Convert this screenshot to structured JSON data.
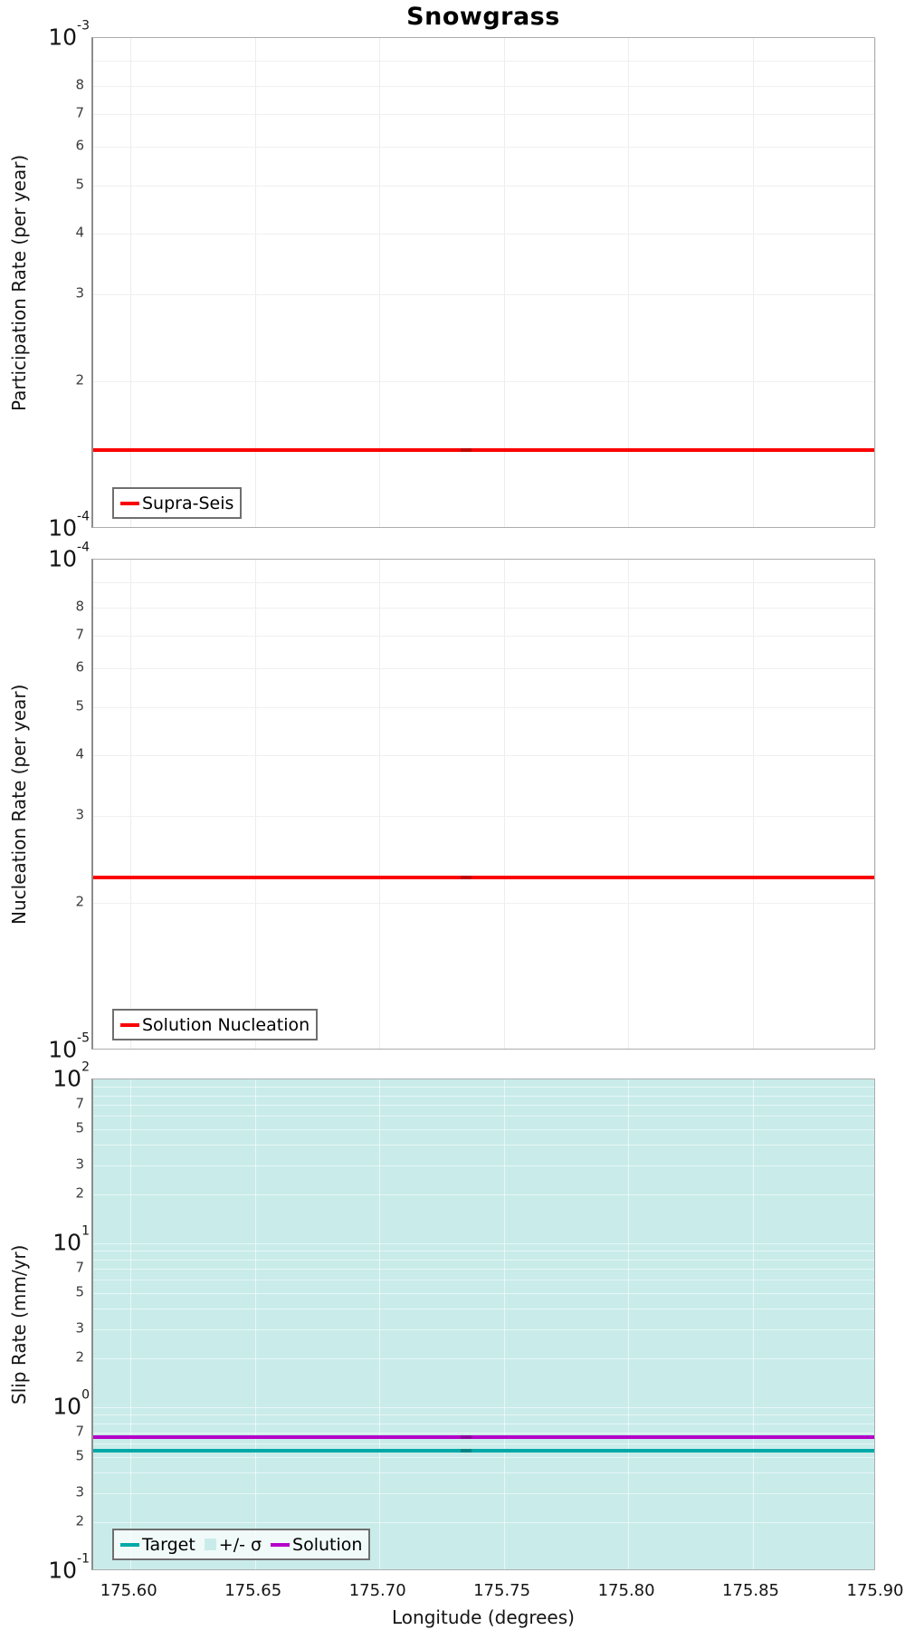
{
  "title": "Snowgrass",
  "x_axis": {
    "label": "Longitude (degrees)",
    "ticks": [
      175.6,
      175.65,
      175.7,
      175.75,
      175.8,
      175.85,
      175.9
    ],
    "tick_labels": [
      "175.60",
      "175.65",
      "175.70",
      "175.75",
      "175.80",
      "175.85",
      "175.90"
    ],
    "range": [
      175.585,
      175.9
    ]
  },
  "chart_data": [
    {
      "type": "line",
      "id": "participation",
      "ylabel": "Participation Rate (per year)",
      "yscale": "log",
      "ylim": [
        0.0001,
        0.001
      ],
      "y_decade_labels": [
        "10^-3",
        "10^-4"
      ],
      "minor_tick_labels": [
        8,
        7,
        6,
        5,
        4,
        3,
        2
      ],
      "grid": true,
      "series": [
        {
          "name": "Supra-Seis",
          "color": "#fa0000",
          "x": [
            175.585,
            175.735,
            175.9
          ],
          "y": [
            0.000145,
            0.000145,
            0.000145
          ]
        }
      ],
      "legend": {
        "position": "lower-left",
        "items": [
          {
            "label": "Supra-Seis",
            "swatch": "line",
            "color": "#fa0000"
          }
        ]
      }
    },
    {
      "type": "line",
      "id": "nucleation",
      "ylabel": "Nucleation Rate (per year)",
      "yscale": "log",
      "ylim": [
        1e-05,
        0.0001
      ],
      "y_decade_labels": [
        "10^-4",
        "10^-5"
      ],
      "minor_tick_labels": [
        8,
        7,
        6,
        5,
        4,
        3,
        2
      ],
      "grid": true,
      "series": [
        {
          "name": "Solution Nucleation",
          "color": "#fa0000",
          "x": [
            175.585,
            175.735,
            175.9
          ],
          "y": [
            2.25e-05,
            2.25e-05,
            2.25e-05
          ]
        }
      ],
      "legend": {
        "position": "lower-left",
        "items": [
          {
            "label": "Solution Nucleation",
            "swatch": "line",
            "color": "#fa0000"
          }
        ]
      }
    },
    {
      "type": "line",
      "id": "slip-rate",
      "ylabel": "Slip Rate (mm/yr)",
      "yscale": "log",
      "ylim": [
        0.1,
        100
      ],
      "y_decade_labels": [
        "10^2",
        "10^1",
        "10^0",
        "10^-1"
      ],
      "minor_tick_labels": [
        7,
        5,
        3,
        2
      ],
      "grid": true,
      "band": {
        "label": "+/- σ",
        "color": "#c9ecea",
        "y_lo": 0.1,
        "y_hi": 100
      },
      "series": [
        {
          "name": "Solution",
          "color": "#b400c8",
          "x": [
            175.585,
            175.735,
            175.9
          ],
          "y": [
            0.66,
            0.66,
            0.66
          ]
        },
        {
          "name": "Target",
          "color": "#00a8a8",
          "x": [
            175.585,
            175.735,
            175.9
          ],
          "y": [
            0.54,
            0.54,
            0.54
          ]
        }
      ],
      "legend": {
        "position": "lower-left",
        "items": [
          {
            "label": "Target",
            "swatch": "line",
            "color": "#00a8a8"
          },
          {
            "label": "+/- σ",
            "swatch": "patch",
            "color": "#c9ecea"
          },
          {
            "label": "Solution",
            "swatch": "line",
            "color": "#b400c8"
          }
        ]
      }
    }
  ],
  "colors": {
    "red_line": "#fa0000",
    "target_teal": "#00a8a8",
    "solution_purple": "#b400c8",
    "sigma_band_fill": "#c9ecea",
    "gridline_white_panel": "#f0f0f0",
    "spine_gray": "#8d8d8d"
  }
}
